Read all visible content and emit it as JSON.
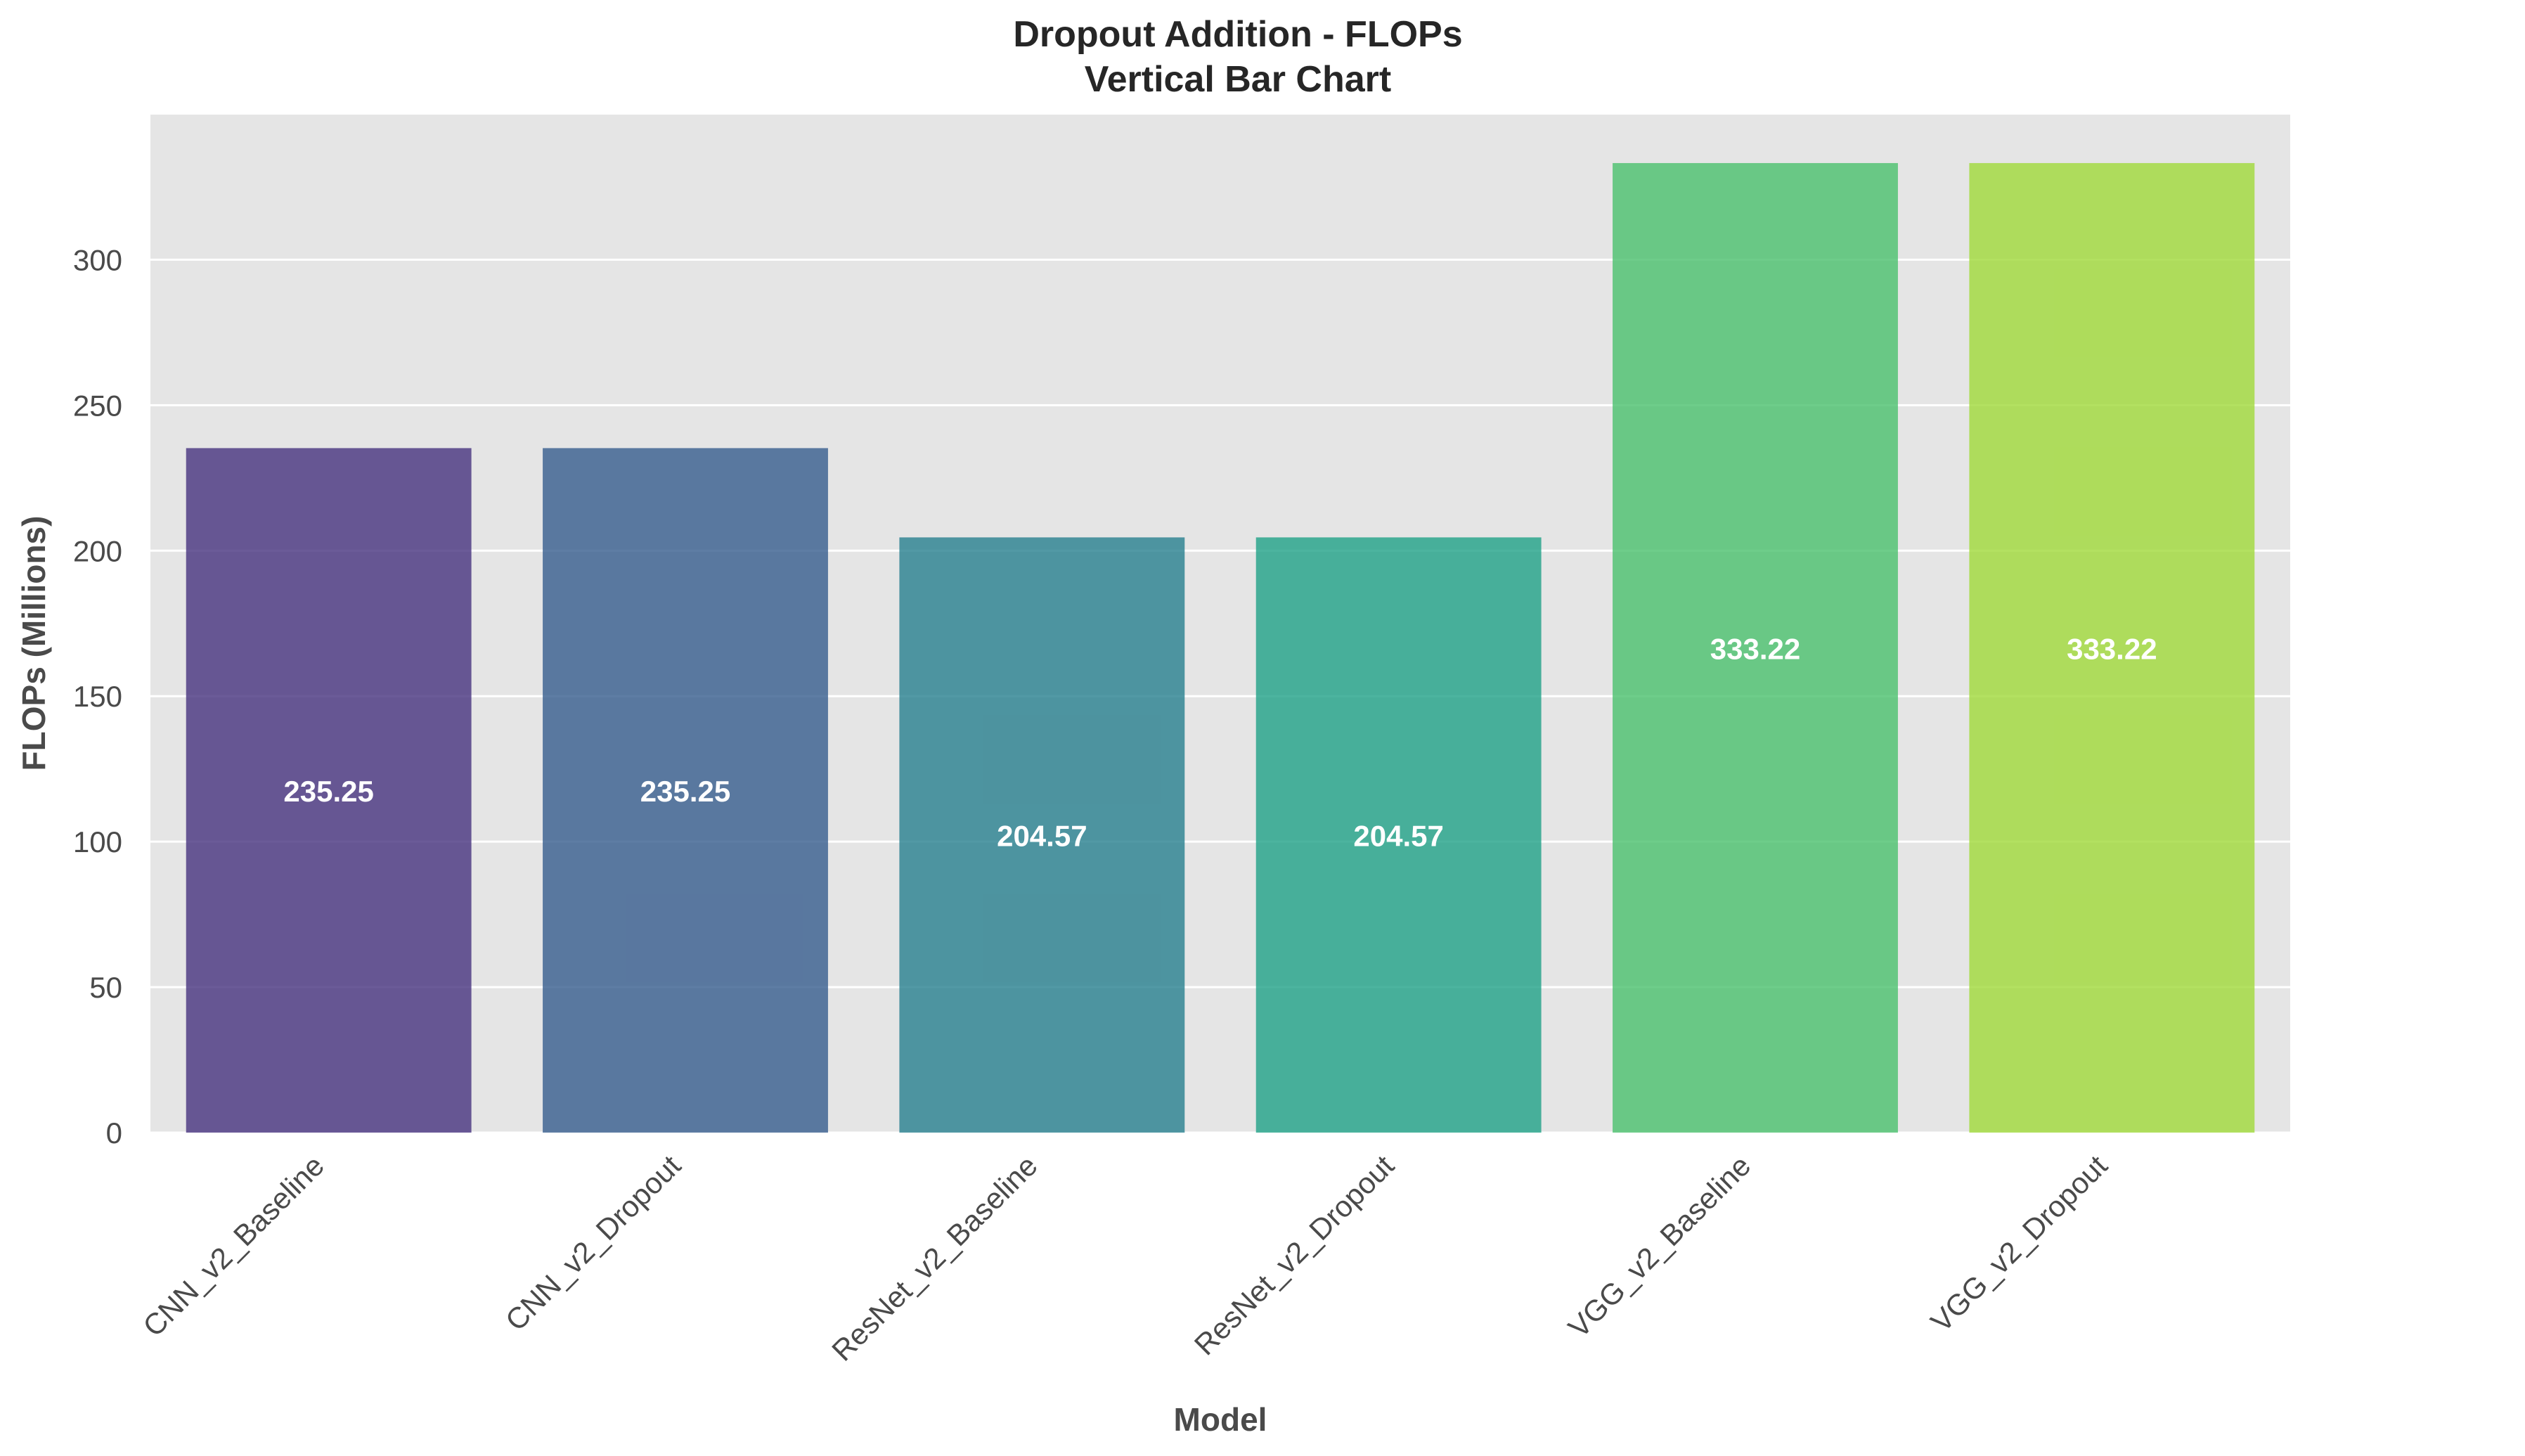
{
  "chart_data": {
    "type": "bar",
    "title": "Dropout Addition - FLOPs",
    "subtitle": "Vertical Bar Chart",
    "xlabel": "Model",
    "ylabel": "FLOPs (Millions)",
    "categories": [
      "CNN_v2_Baseline",
      "CNN_v2_Dropout",
      "ResNet_v2_Baseline",
      "ResNet_v2_Dropout",
      "VGG_v2_Baseline",
      "VGG_v2_Dropout"
    ],
    "values": [
      235.25,
      235.25,
      204.57,
      204.57,
      333.22,
      333.22
    ],
    "value_labels": [
      "235.25",
      "235.25",
      "204.57",
      "204.57",
      "333.22",
      "333.22"
    ],
    "colors": [
      "#46327e",
      "#365c8d",
      "#277f8e",
      "#1fa187",
      "#4ac16d",
      "#a0da39"
    ],
    "ylim": [
      0,
      349.88
    ],
    "yticks": [
      0,
      50,
      100,
      150,
      200,
      250,
      300
    ],
    "ytick_labels": [
      "0",
      "50",
      "100",
      "150",
      "200",
      "250",
      "300"
    ],
    "grid": true,
    "background": "#e5e5e5"
  }
}
